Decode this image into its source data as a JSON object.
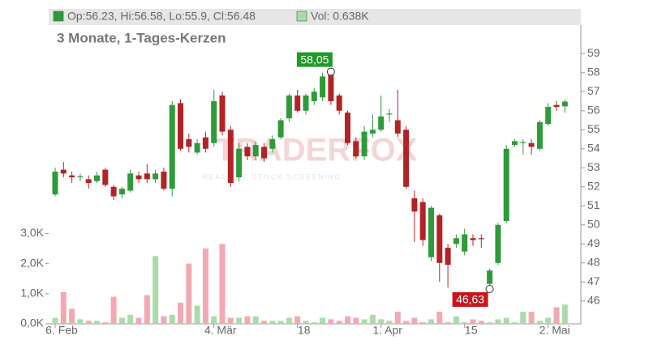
{
  "chart_data": {
    "type": "candlestick",
    "header": {
      "ohlc_label": "Op:56.23, Hi:56.58, Lo:55.9, Cl:56.48",
      "volume_label": "Vol: 0.638K"
    },
    "subtitle": "3 Monate, 1-Tages-Kerzen",
    "watermark": {
      "title": "TRADERFOX",
      "tagline": "REALTIME STOCK SCREENING"
    },
    "categories": [
      "6. Feb",
      null,
      null,
      null,
      null,
      null,
      null,
      null,
      null,
      null,
      null,
      null,
      null,
      null,
      null,
      null,
      null,
      null,
      null,
      "4. Mär",
      null,
      null,
      null,
      null,
      null,
      null,
      null,
      null,
      null,
      "18",
      null,
      null,
      null,
      null,
      null,
      null,
      null,
      null,
      null,
      "1. Apr",
      null,
      null,
      null,
      null,
      null,
      null,
      null,
      null,
      null,
      "15",
      null,
      null,
      null,
      null,
      null,
      null,
      null,
      null,
      null,
      "2. Mai",
      null,
      null
    ],
    "open": [
      51.6,
      52.9,
      52.6,
      52.5,
      52.4,
      52.3,
      52.9,
      52.0,
      51.6,
      51.8,
      52.6,
      52.7,
      52.4,
      52.8,
      51.9,
      56.4,
      54.5,
      53.8,
      54.6,
      54.3,
      56.8,
      55.0,
      52.5,
      54.1,
      53.6,
      54.1,
      54.0,
      54.6,
      55.6,
      56.8,
      56.0,
      56.5,
      56.7,
      58.0,
      56.8,
      55.9,
      54.4,
      53.6,
      54.8,
      55.0,
      55.8,
      55.5,
      55.0,
      51.4,
      51.2,
      48.3,
      50.5,
      48.8,
      49.0,
      48.6,
      49.3,
      49.3,
      46.9,
      48.0,
      50.2,
      54.2,
      54.3,
      54.3,
      54.0,
      55.3,
      56.3,
      56.23
    ],
    "high": [
      53.0,
      53.3,
      52.8,
      52.7,
      52.6,
      52.8,
      53.0,
      52.1,
      52.0,
      52.9,
      52.8,
      53.2,
      52.9,
      53.0,
      56.5,
      56.6,
      54.8,
      54.5,
      54.9,
      57.1,
      57.0,
      55.2,
      54.3,
      54.3,
      54.4,
      54.3,
      54.7,
      55.6,
      56.9,
      57.1,
      56.9,
      57.2,
      58.0,
      58.05,
      56.9,
      56.0,
      54.6,
      55.2,
      55.8,
      56.8,
      56.1,
      57.1,
      55.2,
      51.8,
      51.4,
      51.0,
      50.6,
      49.0,
      49.5,
      49.8,
      49.5,
      49.5,
      47.7,
      50.1,
      54.2,
      54.5,
      54.5,
      54.5,
      55.5,
      56.4,
      56.5,
      56.58
    ],
    "low": [
      51.5,
      52.5,
      52.2,
      52.3,
      51.9,
      52.2,
      52.0,
      51.3,
      51.4,
      51.7,
      52.2,
      52.2,
      52.2,
      51.8,
      51.5,
      53.9,
      53.8,
      53.7,
      53.8,
      54.1,
      54.7,
      52.0,
      52.3,
      53.4,
      53.4,
      53.3,
      53.8,
      54.5,
      55.4,
      55.9,
      55.8,
      56.3,
      56.5,
      56.3,
      55.8,
      54.2,
      53.5,
      53.4,
      54.6,
      54.9,
      55.4,
      54.6,
      51.9,
      49.1,
      48.9,
      48.1,
      47.0,
      46.7,
      48.8,
      48.4,
      48.9,
      48.8,
      46.63,
      47.9,
      50.1,
      54.1,
      53.7,
      53.7,
      53.9,
      55.2,
      56.0,
      55.9
    ],
    "close": [
      52.8,
      52.7,
      52.5,
      52.55,
      52.2,
      52.6,
      52.1,
      51.5,
      51.9,
      52.7,
      52.4,
      52.4,
      52.7,
      51.9,
      56.3,
      54.0,
      54.1,
      54.3,
      54.0,
      56.5,
      54.9,
      52.2,
      54.0,
      53.6,
      54.2,
      53.5,
      54.5,
      55.5,
      56.8,
      56.0,
      56.8,
      57.0,
      57.8,
      56.5,
      56.0,
      54.3,
      53.6,
      54.9,
      55.0,
      55.7,
      55.85,
      54.8,
      52.0,
      50.7,
      49.2,
      50.9,
      48.0,
      47.9,
      49.3,
      49.5,
      49.2,
      49.25,
      47.6,
      50.0,
      54.0,
      54.4,
      54.35,
      54.1,
      55.4,
      56.2,
      56.2,
      56.48
    ],
    "volume": [
      0.2,
      1.05,
      0.5,
      0.15,
      0.1,
      0.1,
      0.05,
      0.9,
      0.2,
      0.3,
      0.2,
      0.95,
      2.25,
      0.25,
      0.3,
      0.7,
      2.0,
      0.6,
      2.5,
      0.25,
      2.65,
      0.2,
      0.2,
      0.25,
      0.25,
      0.1,
      0.1,
      0.1,
      0.2,
      0.25,
      0.1,
      0.05,
      0.2,
      0.15,
      0.1,
      0.25,
      0.2,
      0.15,
      0.3,
      0.15,
      0.1,
      0.4,
      0.1,
      0.2,
      0.05,
      0.15,
      0.4,
      0.05,
      0.25,
      0.05,
      0.15,
      0.1,
      0.05,
      0.15,
      0.2,
      0.05,
      0.4,
      0.4,
      0.1,
      0.2,
      0.55,
      0.638
    ],
    "up_color": "#2e9b3a",
    "down_color": "#b22326",
    "up_volume_color": "#a9dca8",
    "down_volume_color": "#f2a9b3",
    "annotations": [
      {
        "label": "58,05",
        "value": 58.05,
        "color": "#1e9b27"
      },
      {
        "label": "46,63",
        "value": 46.63,
        "color": "#c8171c"
      }
    ],
    "ylim": [
      44.8,
      60.5
    ],
    "yticks": [
      46,
      47,
      48,
      49,
      50,
      51,
      52,
      53,
      54,
      55,
      56,
      57,
      58,
      59
    ],
    "y2lim": [
      0,
      9.92
    ],
    "y2ticks": [
      {
        "value": 0,
        "label": "0,0K"
      },
      {
        "value": 1,
        "label": "1,0K"
      },
      {
        "value": 2,
        "label": "2,0K"
      },
      {
        "value": 3,
        "label": "3,0K"
      }
    ]
  }
}
